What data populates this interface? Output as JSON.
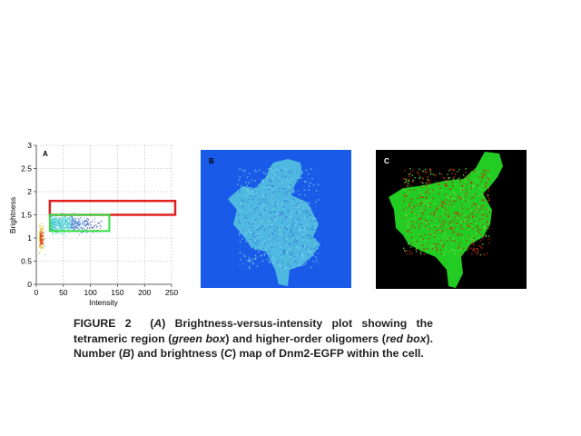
{
  "panel_a": {
    "label": "A",
    "chart_data": {
      "type": "scatter",
      "xlabel": "Intensity",
      "ylabel": "Brightness",
      "xlim": [
        0,
        250
      ],
      "ylim": [
        0,
        3
      ],
      "xticks": [
        "0",
        "50",
        "100",
        "150",
        "200",
        "250"
      ],
      "yticks": [
        "0",
        "0.5",
        "1",
        "1.5",
        "2",
        "2.5",
        "3"
      ],
      "grid": true,
      "colormap": "density (blue to red)",
      "regions": [
        {
          "name": "red box",
          "color": "#e02020",
          "x": [
            25,
            250
          ],
          "y": [
            1.5,
            1.8
          ]
        },
        {
          "name": "green box",
          "color": "#30e040",
          "x": [
            25,
            135
          ],
          "y": [
            1.15,
            1.5
          ]
        }
      ]
    }
  },
  "panel_b": {
    "label": "B",
    "colors": {
      "background": "#1a5ae8",
      "cell": "#4fb8e0"
    }
  },
  "panel_c": {
    "label": "C",
    "colors": {
      "background": "#000000",
      "cell": "#22cc22",
      "hot": "#c03010"
    }
  },
  "caption": {
    "figure": "FIGURE 2",
    "parts": [
      "(",
      "A",
      ") Brightness-versus-intensity plot showing the tetrameric region (",
      "green box",
      ") and higher-order oligomers (",
      "red box",
      "). Number (",
      "B",
      ") and brightness (",
      "C",
      ") map of Dnm2-EGFP within the cell."
    ]
  }
}
